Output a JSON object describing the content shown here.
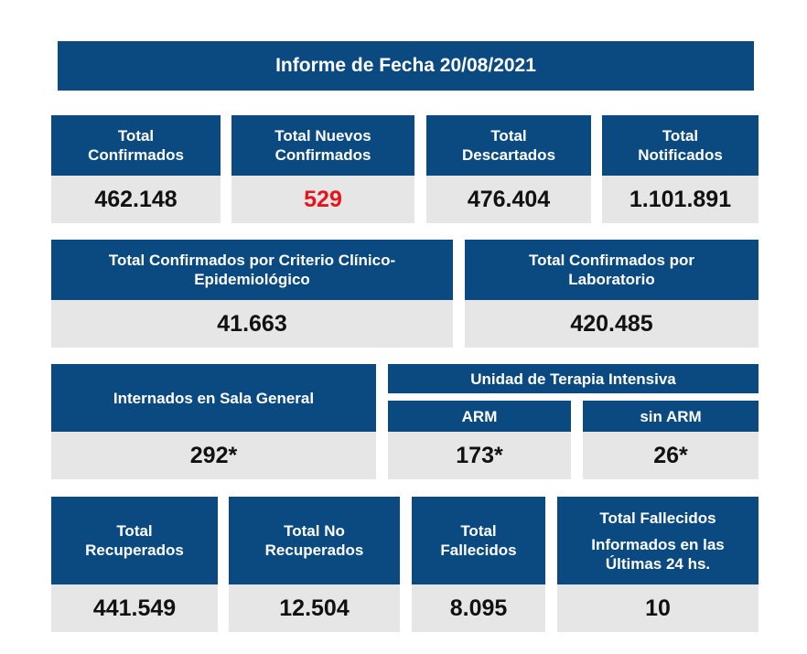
{
  "title": "Informe de Fecha 20/08/2021",
  "row1": [
    {
      "label_l1": "Total",
      "label_l2": "Confirmados",
      "value": "462.148"
    },
    {
      "label_l1": "Total Nuevos",
      "label_l2": "Confirmados",
      "value": "529",
      "value_color": "#e8141b"
    },
    {
      "label_l1": "Total",
      "label_l2": "Descartados",
      "value": "476.404"
    },
    {
      "label_l1": "Total",
      "label_l2": "Notificados",
      "value": "1.101.891"
    }
  ],
  "row2": [
    {
      "label_l1": "Total Confirmados por Criterio Clínico-",
      "label_l2": "Epidemiológico",
      "value": "41.663"
    },
    {
      "label_l1": "Total Confirmados por",
      "label_l2": "Laboratorio",
      "value": "420.485"
    }
  ],
  "row3": {
    "general": {
      "label": "Internados en Sala General",
      "value": "292*"
    },
    "uti_label": "Unidad de Terapia Intensiva",
    "arm": {
      "label": "ARM",
      "value": "173*"
    },
    "sin_arm": {
      "label": "sin ARM",
      "value": "26*"
    }
  },
  "row4": [
    {
      "label_l1": "Total",
      "label_l2": "Recuperados",
      "value": "441.549"
    },
    {
      "label_l1": "Total No",
      "label_l2": "Recuperados",
      "value": "12.504"
    },
    {
      "label_l1": "Total",
      "label_l2": "Fallecidos",
      "value": "8.095"
    },
    {
      "label_l1": "Total Fallecidos",
      "label_l2": "Informados en las",
      "label_l3": "Últimas 24 hs.",
      "value": "10"
    }
  ],
  "colors": {
    "header_blue": "#0b4a80",
    "value_gray": "#e6e6e6",
    "highlight_red": "#e8141b"
  }
}
